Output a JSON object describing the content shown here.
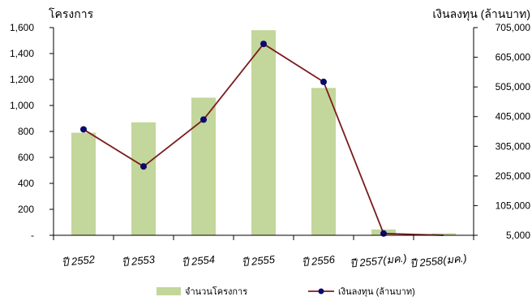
{
  "chart_data": {
    "type": "bar",
    "categories": [
      "ปี 2552",
      "ปี 2553",
      "ปี 2554",
      "ปี 2555",
      "ปี 2556",
      "ปี 2557(มค.)",
      "ปี 2558(มค.)"
    ],
    "series": [
      {
        "name": "จำนวนโครงการ",
        "type": "bar",
        "axis": "left",
        "color": "#c3d69b",
        "values": [
          790,
          870,
          1060,
          1580,
          1135,
          45,
          15
        ]
      },
      {
        "name": "เงินลงทุน (ล้านบาท)",
        "type": "line",
        "axis": "right",
        "color": "#7b1b1b",
        "marker_color": "#0a0a6e",
        "values": [
          362000,
          237000,
          395000,
          650000,
          522000,
          11000,
          5000
        ]
      }
    ],
    "ylabel_left": "โครงการ",
    "ylabel_right": "เงินลงทุน (ล้านบาท)",
    "ylim_left": [
      0,
      1600
    ],
    "ylim_right": [
      5000,
      705000
    ],
    "yticks_left": [
      "-",
      "200",
      "400",
      "600",
      "800",
      "1,000",
      "1,200",
      "1,400",
      "1,600"
    ],
    "yticks_right": [
      "5,000",
      "105,000",
      "205,000",
      "305,000",
      "405,000",
      "505,000",
      "605,000",
      "705,000"
    ],
    "legend_position": "bottom",
    "grid": false
  }
}
